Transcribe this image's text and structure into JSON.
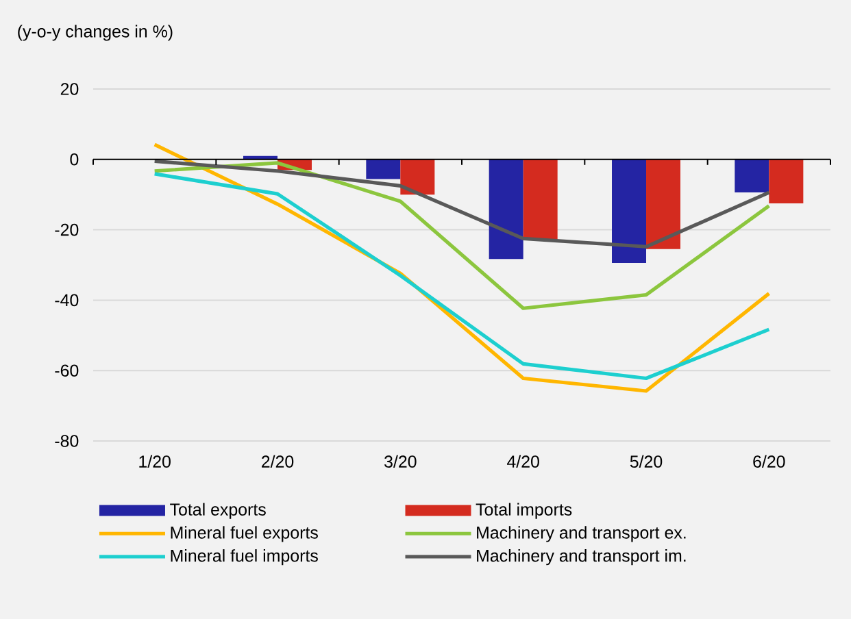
{
  "chart_data": {
    "type": "bar",
    "ylabel": "(y-o-y changes in %)",
    "categories": [
      "1/20",
      "2/20",
      "3/20",
      "4/20",
      "5/20",
      "6/20"
    ],
    "series": [
      {
        "name": "Total exports",
        "color": "#2424a3",
        "values": [
          0,
          1,
          -5.6,
          -28.3,
          -29.4,
          -9.4
        ]
      },
      {
        "name": "Total imports",
        "color": "#d42b1f",
        "values": [
          0,
          -3,
          -10,
          -22.7,
          -25.5,
          -12.5
        ]
      },
      {
        "name": "Mineral fuel exports",
        "type": "line",
        "color": "#ffb600",
        "values": [
          4.2,
          -12.7,
          -32.4,
          -62.2,
          -65.8,
          -38.1
        ]
      },
      {
        "name": "Machinery and transport ex.",
        "type": "line",
        "color": "#8cc63e",
        "values": [
          -3.3,
          -1,
          -11.9,
          -42.3,
          -38.5,
          -13.2
        ]
      },
      {
        "name": "Mineral fuel imports",
        "type": "line",
        "color": "#1dcfcf",
        "values": [
          -4.1,
          -9.8,
          -33,
          -58.1,
          -62.2,
          -48.3
        ]
      },
      {
        "name": "Machinery and transport im.",
        "type": "line",
        "color": "#595959",
        "values": [
          -0.5,
          -3.3,
          -7.5,
          -22.5,
          -24.8,
          -9.4
        ]
      }
    ],
    "ylim": [
      -80,
      20
    ],
    "yticks": [
      -80,
      -60,
      -40,
      -20,
      0,
      20
    ],
    "grid": "y",
    "legend": "bottom",
    "marker": "none",
    "line_style": "solid"
  }
}
